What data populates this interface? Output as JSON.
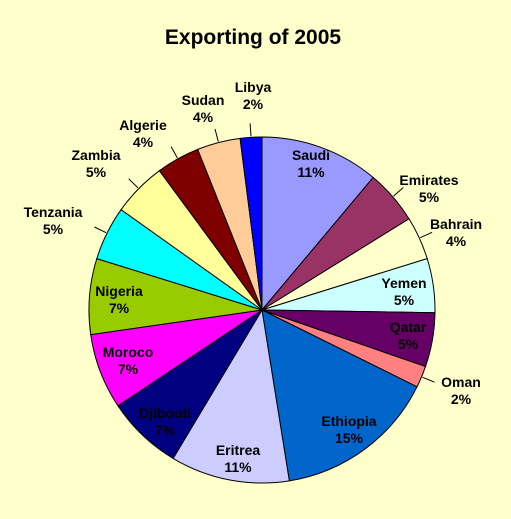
{
  "chart_data": {
    "type": "pie",
    "title": "Exporting of 2005",
    "start_angle_deg": 0,
    "direction": "clockwise",
    "slices": [
      {
        "label": "Saudi",
        "pct_label": "11%",
        "value": 11,
        "color": "#9999ff",
        "label_inside": true,
        "label_color": "#000000"
      },
      {
        "label": "Emirates",
        "pct_label": "5%",
        "value": 5,
        "color": "#993366",
        "label_inside": false,
        "label_color": "#000000"
      },
      {
        "label": "Bahrain",
        "pct_label": "4%",
        "value": 4,
        "color": "#ffffcc",
        "label_inside": false,
        "label_color": "#000000"
      },
      {
        "label": "Yemen",
        "pct_label": "5%",
        "value": 5,
        "color": "#ccffff",
        "label_inside": true,
        "label_color": "#000000"
      },
      {
        "label": "Qatar",
        "pct_label": "5%",
        "value": 5,
        "color": "#660066",
        "label_inside": true,
        "label_color": "#000000"
      },
      {
        "label": "Oman",
        "pct_label": "2%",
        "value": 2,
        "color": "#ff8080",
        "label_inside": false,
        "label_color": "#000000"
      },
      {
        "label": "Ethiopia",
        "pct_label": "15%",
        "value": 15,
        "color": "#0066cc",
        "label_inside": true,
        "label_color": "#000000"
      },
      {
        "label": "Eritrea",
        "pct_label": "11%",
        "value": 11,
        "color": "#ccccff",
        "label_inside": true,
        "label_color": "#000000"
      },
      {
        "label": "Djibouti",
        "pct_label": "7%",
        "value": 7,
        "color": "#000080",
        "label_inside": true,
        "label_color": "#000000"
      },
      {
        "label": "Moroco",
        "pct_label": "7%",
        "value": 7,
        "color": "#ff00ff",
        "label_inside": true,
        "label_color": "#000000"
      },
      {
        "label": "Nigeria",
        "pct_label": "7%",
        "value": 7,
        "color": "#99cc00",
        "label_inside": true,
        "label_color": "#000000"
      },
      {
        "label": "Tenzania",
        "pct_label": "5%",
        "value": 5,
        "color": "#00ffff",
        "label_inside": false,
        "label_color": "#000000"
      },
      {
        "label": "Zambia",
        "pct_label": "5%",
        "value": 5,
        "color": "#ffff99",
        "label_inside": false,
        "label_color": "#000000"
      },
      {
        "label": "Algerie",
        "pct_label": "4%",
        "value": 4,
        "color": "#800000",
        "label_inside": false,
        "label_color": "#000000"
      },
      {
        "label": "Sudan",
        "pct_label": "4%",
        "value": 4,
        "color": "#ffcc99",
        "label_inside": false,
        "label_color": "#000000"
      },
      {
        "label": "Libya",
        "pct_label": "2%",
        "value": 2,
        "color": "#0000ff",
        "label_inside": false,
        "label_color": "#000000"
      }
    ],
    "legend": "none"
  }
}
